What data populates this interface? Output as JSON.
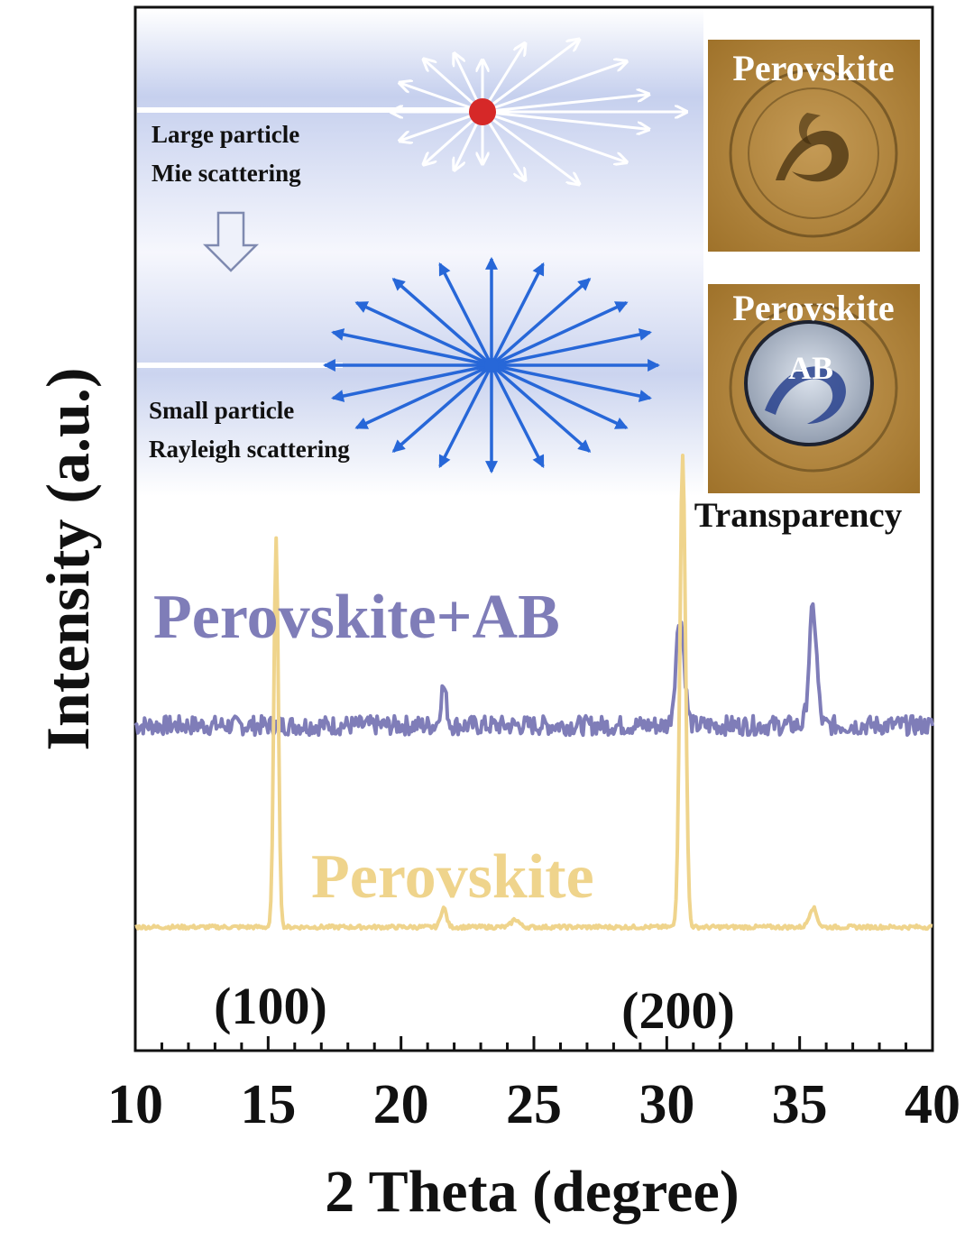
{
  "chart_data": {
    "type": "line",
    "xlabel": "2 Theta (degree)",
    "ylabel": "Intensity (a.u.)",
    "xlim": [
      10,
      40
    ],
    "x_ticks": [
      "10",
      "15",
      "20",
      "25",
      "30",
      "35",
      "40"
    ],
    "grid": false,
    "series": [
      {
        "name": "Perovskite+AB",
        "color": "#7f7db8",
        "baseline": 0.52,
        "peaks": [
          {
            "x": 21.6,
            "height": 0.1,
            "width": 0.15
          },
          {
            "x": 30.5,
            "height": 0.28,
            "width": 0.22
          },
          {
            "x": 35.5,
            "height": 0.3,
            "width": 0.2
          }
        ],
        "noise": 0.05
      },
      {
        "name": "Perovskite",
        "color": "#efd48c",
        "baseline": 0.0,
        "peaks": [
          {
            "x": 15.3,
            "height": 1.0,
            "width": 0.12
          },
          {
            "x": 21.6,
            "height": 0.05,
            "width": 0.15
          },
          {
            "x": 24.3,
            "height": 0.02,
            "width": 0.2
          },
          {
            "x": 30.6,
            "height": 1.22,
            "width": 0.15
          },
          {
            "x": 35.5,
            "height": 0.05,
            "width": 0.2
          }
        ],
        "noise": 0.01
      }
    ],
    "annotations": [
      "(100)",
      "(200)"
    ]
  },
  "inset": {
    "large_label_1": "Large particle",
    "large_label_2": "Mie scattering",
    "small_label_1": "Small particle",
    "small_label_2": "Rayleigh scattering",
    "photo1_label": "Perovskite",
    "photo2_label": "Perovskite",
    "photo2_sub": "AB",
    "transparency_label": "Transparency"
  }
}
